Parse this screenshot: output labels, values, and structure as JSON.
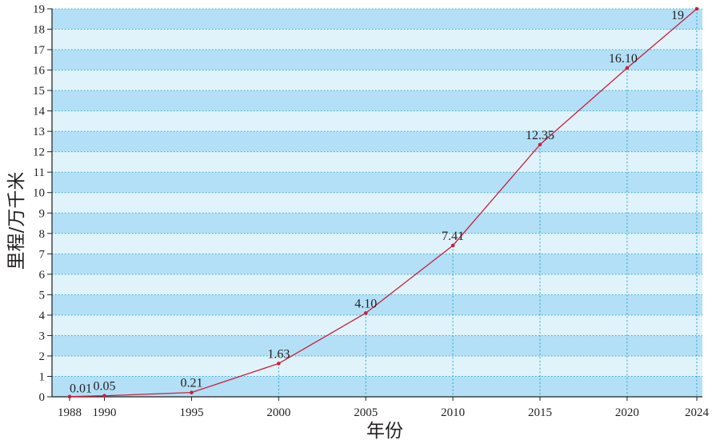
{
  "chart_data": {
    "type": "line",
    "xlabel": "年份",
    "ylabel": "里程/万千米",
    "x": [
      1988,
      1990,
      1995,
      2000,
      2005,
      2010,
      2015,
      2020,
      2024
    ],
    "x_tick_labels": [
      "1988",
      "1990",
      "1995",
      "2000",
      "2005",
      "2010",
      "2015",
      "2020",
      "2024"
    ],
    "series": [
      {
        "values": [
          0.01,
          0.05,
          0.21,
          1.63,
          4.1,
          7.41,
          12.35,
          16.1,
          19
        ],
        "data_labels": [
          "0.01",
          "0.05",
          "0.21",
          "1.63",
          "4.10",
          "7.41",
          "12.35",
          "16.10",
          "19"
        ]
      }
    ],
    "y_tick_labels": [
      "0",
      "1",
      "2",
      "3",
      "4",
      "5",
      "6",
      "7",
      "8",
      "9",
      "10",
      "11",
      "12",
      "13",
      "14",
      "15",
      "16",
      "17",
      "18",
      "19"
    ],
    "ylim": [
      0,
      19
    ],
    "xlim": [
      1988,
      2024
    ],
    "grid": "dotted",
    "drop_lines": true,
    "colors": {
      "band_dark": "#b3e0f6",
      "band_light": "#e0f3fb",
      "grid": "#2aa3c9",
      "line": "#c8203a",
      "axis": "#231f20"
    }
  }
}
